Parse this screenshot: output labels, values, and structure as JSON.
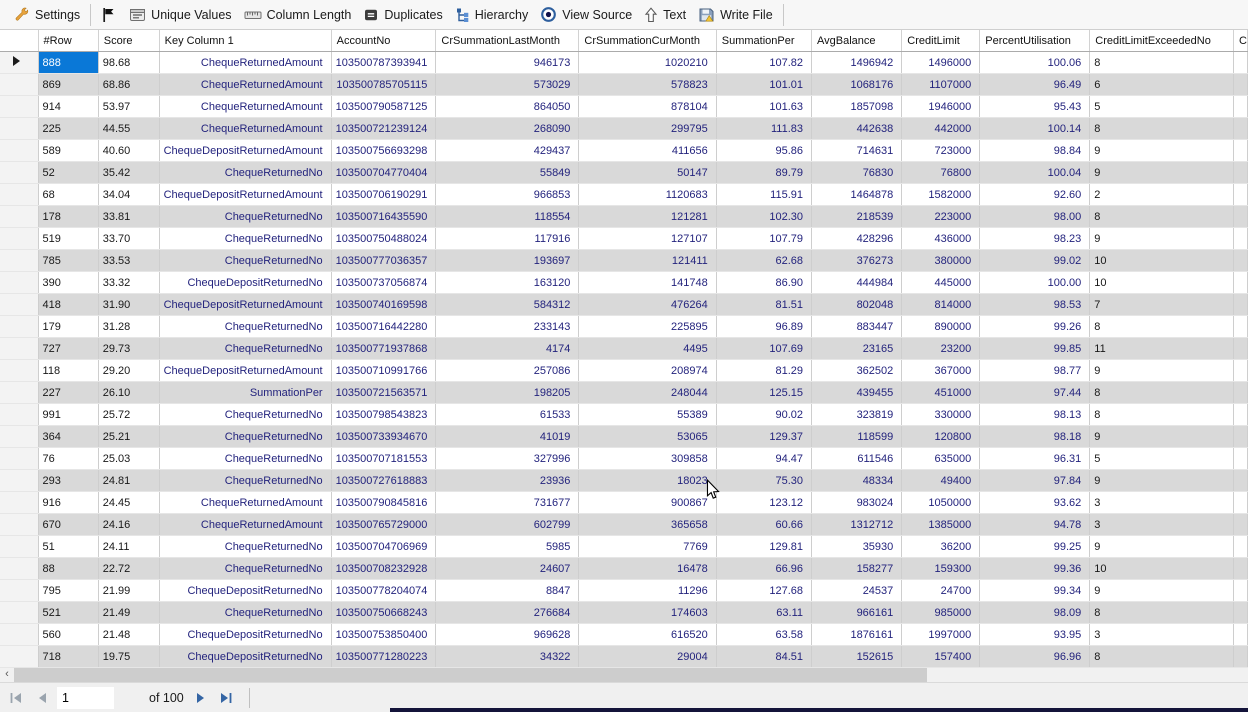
{
  "toolbar": {
    "items": [
      {
        "name": "settings-button",
        "icon": "wrench-icon",
        "label": "Settings",
        "separator_after": true
      },
      {
        "name": "flag-button",
        "icon": "flag-icon",
        "label": ""
      },
      {
        "name": "unique-values-button",
        "icon": "unique-values-icon",
        "label": "Unique Values"
      },
      {
        "name": "column-length-button",
        "icon": "ruler-icon",
        "label": "Column Length"
      },
      {
        "name": "duplicates-button",
        "icon": "duplicates-icon",
        "label": "Duplicates"
      },
      {
        "name": "hierarchy-button",
        "icon": "hierarchy-icon",
        "label": "Hierarchy"
      },
      {
        "name": "view-source-button",
        "icon": "view-source-icon",
        "label": "View Source"
      },
      {
        "name": "text-button",
        "icon": "text-cursor-icon",
        "label": "Text"
      },
      {
        "name": "write-file-button",
        "icon": "save-icon",
        "label": "Write File",
        "separator_after": true
      }
    ]
  },
  "grid": {
    "columns": [
      "#Row",
      "Score",
      "Key Column 1",
      "AccountNo",
      "CrSummationLastMonth",
      "CrSummationCurMonth",
      "SummationPer",
      "AvgBalance",
      "CreditLimit",
      "PercentUtilisation",
      "CreditLimitExceededNo",
      "C"
    ],
    "rows": [
      [
        "888",
        "98.68",
        "ChequeReturnedAmount",
        "103500787393941",
        "946173",
        "1020210",
        "107.82",
        "1496942",
        "1496000",
        "100.06",
        "8"
      ],
      [
        "869",
        "68.86",
        "ChequeReturnedAmount",
        "103500785705115",
        "573029",
        "578823",
        "101.01",
        "1068176",
        "1107000",
        "96.49",
        "6"
      ],
      [
        "914",
        "53.97",
        "ChequeReturnedAmount",
        "103500790587125",
        "864050",
        "878104",
        "101.63",
        "1857098",
        "1946000",
        "95.43",
        "5"
      ],
      [
        "225",
        "44.55",
        "ChequeReturnedAmount",
        "103500721239124",
        "268090",
        "299795",
        "111.83",
        "442638",
        "442000",
        "100.14",
        "8"
      ],
      [
        "589",
        "40.60",
        "ChequeDepositReturnedAmount",
        "103500756693298",
        "429437",
        "411656",
        "95.86",
        "714631",
        "723000",
        "98.84",
        "9"
      ],
      [
        "52",
        "35.42",
        "ChequeReturnedNo",
        "103500704770404",
        "55849",
        "50147",
        "89.79",
        "76830",
        "76800",
        "100.04",
        "9"
      ],
      [
        "68",
        "34.04",
        "ChequeDepositReturnedAmount",
        "103500706190291",
        "966853",
        "1120683",
        "115.91",
        "1464878",
        "1582000",
        "92.60",
        "2"
      ],
      [
        "178",
        "33.81",
        "ChequeReturnedNo",
        "103500716435590",
        "118554",
        "121281",
        "102.30",
        "218539",
        "223000",
        "98.00",
        "8"
      ],
      [
        "519",
        "33.70",
        "ChequeReturnedNo",
        "103500750488024",
        "117916",
        "127107",
        "107.79",
        "428296",
        "436000",
        "98.23",
        "9"
      ],
      [
        "785",
        "33.53",
        "ChequeReturnedNo",
        "103500777036357",
        "193697",
        "121411",
        "62.68",
        "376273",
        "380000",
        "99.02",
        "10"
      ],
      [
        "390",
        "33.32",
        "ChequeDepositReturnedNo",
        "103500737056874",
        "163120",
        "141748",
        "86.90",
        "444984",
        "445000",
        "100.00",
        "10"
      ],
      [
        "418",
        "31.90",
        "ChequeDepositReturnedAmount",
        "103500740169598",
        "584312",
        "476264",
        "81.51",
        "802048",
        "814000",
        "98.53",
        "7"
      ],
      [
        "179",
        "31.28",
        "ChequeReturnedNo",
        "103500716442280",
        "233143",
        "225895",
        "96.89",
        "883447",
        "890000",
        "99.26",
        "8"
      ],
      [
        "727",
        "29.73",
        "ChequeReturnedNo",
        "103500771937868",
        "4174",
        "4495",
        "107.69",
        "23165",
        "23200",
        "99.85",
        "11"
      ],
      [
        "118",
        "29.20",
        "ChequeDepositReturnedAmount",
        "103500710991766",
        "257086",
        "208974",
        "81.29",
        "362502",
        "367000",
        "98.77",
        "9"
      ],
      [
        "227",
        "26.10",
        "SummationPer",
        "103500721563571",
        "198205",
        "248044",
        "125.15",
        "439455",
        "451000",
        "97.44",
        "8"
      ],
      [
        "991",
        "25.72",
        "ChequeReturnedNo",
        "103500798543823",
        "61533",
        "55389",
        "90.02",
        "323819",
        "330000",
        "98.13",
        "8"
      ],
      [
        "364",
        "25.21",
        "ChequeReturnedNo",
        "103500733934670",
        "41019",
        "53065",
        "129.37",
        "118599",
        "120800",
        "98.18",
        "9"
      ],
      [
        "76",
        "25.03",
        "ChequeReturnedNo",
        "103500707181553",
        "327996",
        "309858",
        "94.47",
        "611546",
        "635000",
        "96.31",
        "5"
      ],
      [
        "293",
        "24.81",
        "ChequeReturnedNo",
        "103500727618883",
        "23936",
        "18023",
        "75.30",
        "48334",
        "49400",
        "97.84",
        "9"
      ],
      [
        "916",
        "24.45",
        "ChequeReturnedAmount",
        "103500790845816",
        "731677",
        "900867",
        "123.12",
        "983024",
        "1050000",
        "93.62",
        "3"
      ],
      [
        "670",
        "24.16",
        "ChequeReturnedAmount",
        "103500765729000",
        "602799",
        "365658",
        "60.66",
        "1312712",
        "1385000",
        "94.78",
        "3"
      ],
      [
        "51",
        "24.11",
        "ChequeReturnedNo",
        "103500704706969",
        "5985",
        "7769",
        "129.81",
        "35930",
        "36200",
        "99.25",
        "9"
      ],
      [
        "88",
        "22.72",
        "ChequeReturnedNo",
        "103500708232928",
        "24607",
        "16478",
        "66.96",
        "158277",
        "159300",
        "99.36",
        "10"
      ],
      [
        "795",
        "21.99",
        "ChequeDepositReturnedNo",
        "103500778204074",
        "8847",
        "11296",
        "127.68",
        "24537",
        "24700",
        "99.34",
        "9"
      ],
      [
        "521",
        "21.49",
        "ChequeReturnedNo",
        "103500750668243",
        "276684",
        "174603",
        "63.11",
        "966161",
        "985000",
        "98.09",
        "8"
      ],
      [
        "560",
        "21.48",
        "ChequeDepositReturnedNo",
        "103500753850400",
        "969628",
        "616520",
        "63.58",
        "1876161",
        "1997000",
        "93.95",
        "3"
      ],
      [
        "718",
        "19.75",
        "ChequeDepositReturnedNo",
        "103500771280223",
        "34322",
        "29004",
        "84.51",
        "152615",
        "157400",
        "96.96",
        "8"
      ]
    ],
    "selection": {
      "row_index": 0,
      "column_index": 0
    }
  },
  "pager": {
    "current_page": "1",
    "of_label": "of 100"
  },
  "colors": {
    "selection": "#0a78d7",
    "accent_blue": "#3465a4",
    "disabled_arrow": "#9aa4ae"
  }
}
